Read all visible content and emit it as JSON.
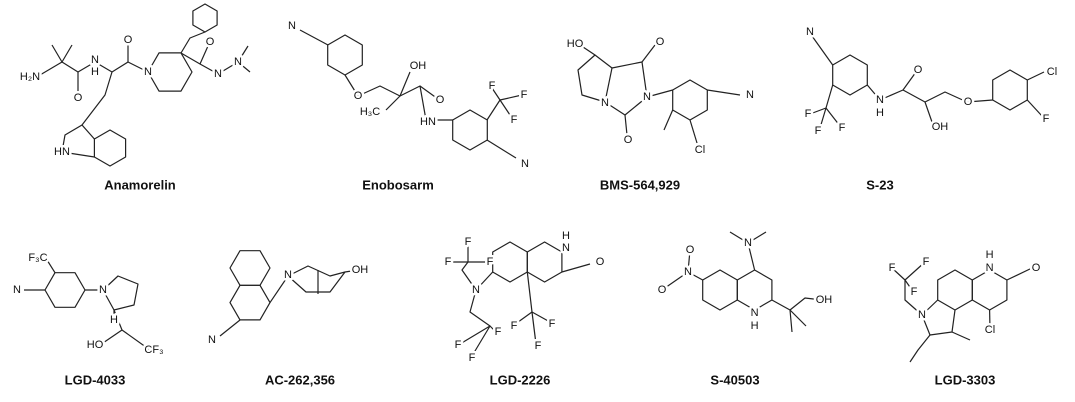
{
  "compounds": [
    {
      "name": "Anamorelin",
      "atoms": [
        "H₂N",
        "O",
        "N",
        "H",
        "O",
        "N",
        "HN",
        "O",
        "N",
        "N"
      ]
    },
    {
      "name": "Enobosarm",
      "atoms": [
        "N",
        "O",
        "OH",
        "H₃C",
        "O",
        "HN",
        "F",
        "F",
        "F",
        "N"
      ]
    },
    {
      "name": "BMS-564,929",
      "atoms": [
        "HO",
        "O",
        "N",
        "N",
        "O",
        "Cl",
        "N"
      ]
    },
    {
      "name": "S-23",
      "atoms": [
        "N",
        "F",
        "F",
        "F",
        "N",
        "H",
        "O",
        "OH",
        "O",
        "Cl",
        "F"
      ]
    },
    {
      "name": "LGD-4033",
      "atoms": [
        "F₃C",
        "N",
        "N",
        "H",
        "HO",
        "CF₃"
      ]
    },
    {
      "name": "AC-262,356",
      "atoms": [
        "N",
        "OH",
        "N"
      ]
    },
    {
      "name": "LGD-2226",
      "atoms": [
        "F",
        "F",
        "F",
        "N",
        "F",
        "F",
        "F",
        "H",
        "N",
        "O",
        "F",
        "F",
        "F"
      ]
    },
    {
      "name": "S-40503",
      "atoms": [
        "O",
        "N",
        "O",
        "N",
        "N",
        "H",
        "OH"
      ]
    },
    {
      "name": "LGD-3303",
      "atoms": [
        "F",
        "F",
        "F",
        "N",
        "H",
        "N",
        "O",
        "Cl"
      ]
    }
  ]
}
